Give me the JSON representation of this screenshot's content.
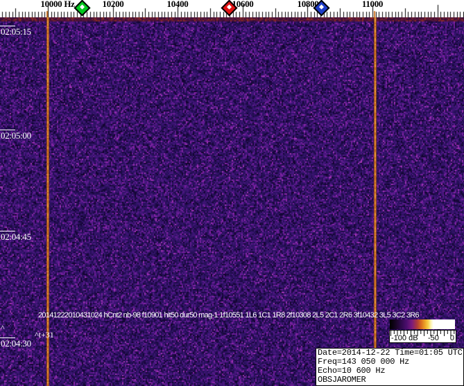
{
  "freq_ruler": {
    "unit": "Hz",
    "labels": [
      "10000 Hz",
      "10200",
      "10400",
      "10600",
      "10800",
      "11000"
    ],
    "label_freqs_hz": [
      10000,
      10200,
      10400,
      10600,
      10800,
      11000
    ],
    "minor_tick_step_hz": 10,
    "medium_tick_step_hz": 100,
    "markers": [
      {
        "name": "green-marker",
        "freq_hz": 10105,
        "color": "#00c81e"
      },
      {
        "name": "red-marker",
        "freq_hz": 10558,
        "color": "#e01414"
      },
      {
        "name": "blue-marker",
        "freq_hz": 10844,
        "color": "#1e3cc8"
      }
    ]
  },
  "time_axis": {
    "labels": [
      "02:05:15",
      "02:05:00",
      "02:04:45",
      "02:04:30"
    ],
    "tick_interval_seconds": 15
  },
  "spectrogram": {
    "vertical_line_freqs_hz": [
      10000,
      11008
    ],
    "line_color": "#e68c33",
    "noise_base_color": "#311367"
  },
  "annotations": {
    "event_line": "20141222010431024 hCnt2 nb-98 f10901 hit50 dur50 mag-1 1f10551 1L6 1C1 1R8 2f10308 2L5 2C1 2R6 3f10432 3L5 3C2 3R6",
    "cursor_label": "^t+31",
    "caret": "^"
  },
  "colorbar": {
    "labels": [
      "-100 dB",
      "-50",
      "0"
    ],
    "range_db": [
      -100,
      0
    ]
  },
  "info_box": {
    "lines": [
      "Date=2014-12-22 Time=01:05 UTC",
      "Freq=143 050 000 Hz",
      "Echo=10 600 Hz",
      "OBSJAROMER"
    ]
  }
}
